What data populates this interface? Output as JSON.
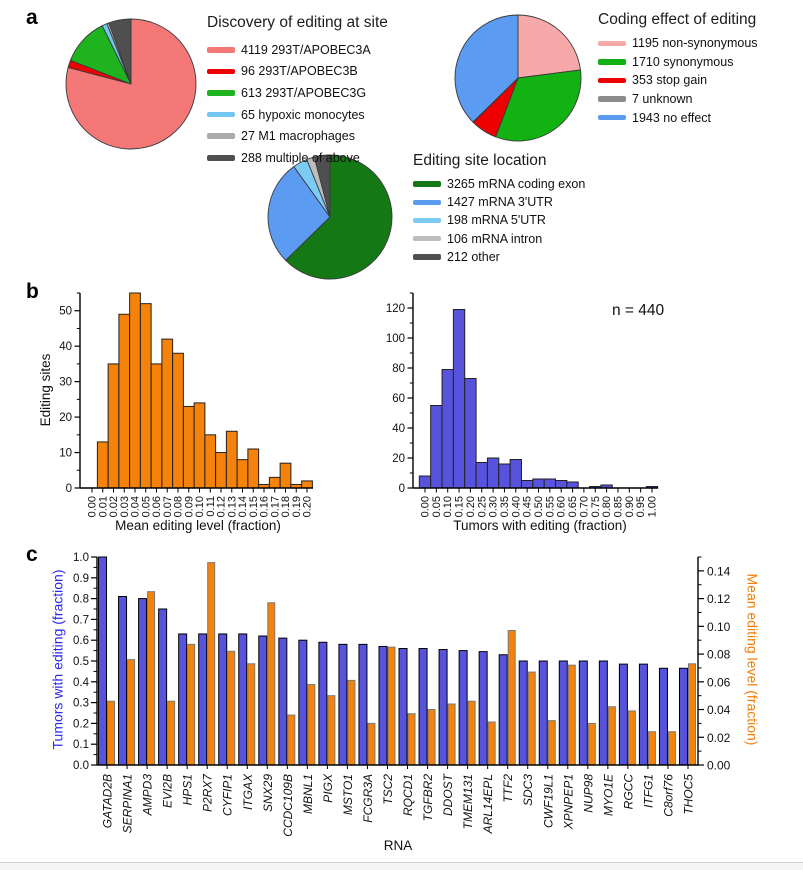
{
  "panels": {
    "a": "a",
    "b": "b",
    "c": "c"
  },
  "colors": {
    "blue_bar": "#5753DC",
    "orange_bar": "#F5820A",
    "axis_blue": "#2A2AEE",
    "axis_orange": "#F57C00"
  },
  "chart_data": [
    {
      "id": "pie-discovery",
      "type": "pie",
      "title": "Discovery of editing at site",
      "slices": [
        {
          "value": 4119,
          "label": "293T/APOBEC3A",
          "color": "#F57878"
        },
        {
          "value": 96,
          "label": "293T/APOBEC3B",
          "color": "#EE0000"
        },
        {
          "value": 613,
          "label": "293T/APOBEC3G",
          "color": "#1FB41F"
        },
        {
          "value": 65,
          "label": "hypoxic monocytes",
          "color": "#74C6F2"
        },
        {
          "value": 27,
          "label": "M1 macrophages",
          "color": "#ABABAB"
        },
        {
          "value": 288,
          "label": "multiple of above",
          "color": "#4F4F4F"
        }
      ]
    },
    {
      "id": "pie-coding-effect",
      "type": "pie",
      "title": "Coding effect of editing",
      "slices": [
        {
          "value": 1195,
          "label": "non-synonymous",
          "color": "#F7A8A8"
        },
        {
          "value": 1710,
          "label": "synonymous",
          "color": "#12B212"
        },
        {
          "value": 353,
          "label": "stop gain",
          "color": "#EE0000"
        },
        {
          "value": 7,
          "label": "unknown",
          "color": "#8C8C8C"
        },
        {
          "value": 1943,
          "label": "no effect",
          "color": "#5B9BF2"
        }
      ]
    },
    {
      "id": "pie-location",
      "type": "pie",
      "title": "Editing site location",
      "slices": [
        {
          "value": 3265,
          "label": "mRNA coding exon",
          "color": "#147814"
        },
        {
          "value": 1427,
          "label": "mRNA 3'UTR",
          "color": "#5B9BF2"
        },
        {
          "value": 198,
          "label": "mRNA 5'UTR",
          "color": "#7BCBF5"
        },
        {
          "value": 106,
          "label": "mRNA intron",
          "color": "#BDBDBD"
        },
        {
          "value": 212,
          "label": "other",
          "color": "#4F4F4F"
        }
      ]
    },
    {
      "id": "hist-mean-editing",
      "type": "bar",
      "title": "",
      "xlabel": "Mean editing level (fraction)",
      "ylabel": "Editing sites",
      "x_ticks": [
        "0.00",
        "0.01",
        "0.02",
        "0.03",
        "0.04",
        "0.05",
        "0.06",
        "0.07",
        "0.08",
        "0.09",
        "0.10",
        "0.11",
        "0.12",
        "0.13",
        "0.14",
        "0.15",
        "0.16",
        "0.17",
        "0.18",
        "0.19",
        "0.20"
      ],
      "values": [
        0,
        13,
        35,
        49,
        55,
        52,
        35,
        42,
        38,
        23,
        24,
        15,
        10,
        16,
        8,
        11,
        1,
        3,
        7,
        1,
        2
      ],
      "y_ticks": [
        0,
        10,
        20,
        30,
        40,
        50
      ],
      "ylim": [
        0,
        55
      ],
      "bar_color": "#F5820A"
    },
    {
      "id": "hist-tumors",
      "type": "bar",
      "title": "",
      "xlabel": "Tumors with editing (fraction)",
      "ylabel": "",
      "annotation": "n = 440",
      "x_ticks": [
        "0.00",
        "0.05",
        "0.10",
        "0.15",
        "0.20",
        "0.25",
        "0.30",
        "0.35",
        "0.40",
        "0.45",
        "0.50",
        "0.55",
        "0.60",
        "0.65",
        "0.70",
        "0.75",
        "0.80",
        "0.85",
        "0.90",
        "0.95",
        "1.00"
      ],
      "values": [
        8,
        55,
        79,
        119,
        73,
        17,
        20,
        16,
        19,
        5,
        6,
        6,
        5,
        4,
        0,
        1,
        2,
        0,
        0,
        0,
        1
      ],
      "y_ticks": [
        0,
        20,
        40,
        60,
        80,
        100,
        120
      ],
      "ylim": [
        0,
        130
      ],
      "bar_color": "#5753DC"
    },
    {
      "id": "gene-dual-bar",
      "type": "bar",
      "title": "",
      "xlabel": "RNA",
      "ylabel_left": "Tumors with editing (fraction)",
      "ylabel_right": "Mean editing level (fraction)",
      "categories": [
        "GATAD2B",
        "SERPINA1",
        "AMPD3",
        "EVI2B",
        "HPS1",
        "P2RX7",
        "CYFIP1",
        "ITGAX",
        "SNX29",
        "CCDC109B",
        "MBNL1",
        "PIGX",
        "MSTO1",
        "FCGR3A",
        "TSC2",
        "RQCD1",
        "TGFBR2",
        "DDOST",
        "TMEM131",
        "ARL14EPL",
        "TTF2",
        "SDC3",
        "CWF19L1",
        "XPNPEP1",
        "NUP98",
        "MYO1E",
        "RGCC",
        "ITFG1",
        "C8orf76",
        "THOC5"
      ],
      "series": [
        {
          "name": "Tumors with editing (fraction)",
          "axis": "left",
          "color": "#5753DC",
          "values": [
            1.0,
            0.81,
            0.8,
            0.75,
            0.63,
            0.63,
            0.63,
            0.63,
            0.62,
            0.61,
            0.6,
            0.59,
            0.58,
            0.58,
            0.57,
            0.56,
            0.56,
            0.555,
            0.55,
            0.545,
            0.53,
            0.5,
            0.5,
            0.5,
            0.5,
            0.5,
            0.485,
            0.485,
            0.465,
            0.465
          ]
        },
        {
          "name": "Mean editing level (fraction)",
          "axis": "right",
          "color": "#F5820A",
          "values": [
            0.046,
            0.076,
            0.125,
            0.046,
            0.087,
            0.146,
            0.082,
            0.073,
            0.117,
            0.036,
            0.058,
            0.05,
            0.061,
            0.03,
            0.085,
            0.037,
            0.04,
            0.044,
            0.046,
            0.031,
            0.097,
            0.067,
            0.032,
            0.072,
            0.03,
            0.042,
            0.039,
            0.024,
            0.024,
            0.073
          ]
        }
      ],
      "left_ticks": [
        "0.0",
        "0.1",
        "0.2",
        "0.3",
        "0.4",
        "0.5",
        "0.6",
        "0.7",
        "0.8",
        "0.9",
        "1.0"
      ],
      "right_ticks": [
        "0.00",
        "0.02",
        "0.04",
        "0.06",
        "0.08",
        "0.10",
        "0.12",
        "0.14"
      ],
      "ylim_left": [
        0,
        1.0
      ],
      "ylim_right": [
        0,
        0.15
      ]
    }
  ]
}
